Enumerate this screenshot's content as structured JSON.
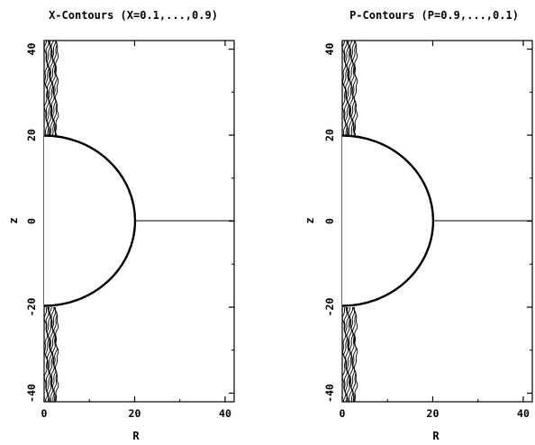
{
  "chart_data": [
    {
      "type": "contour",
      "title": "X-Contours (X=0.1,...,0.9)",
      "xlabel": "R",
      "ylabel": "z",
      "xlim": [
        0,
        42
      ],
      "ylim": [
        -42,
        42
      ],
      "xticks": [
        "0",
        "20",
        "40"
      ],
      "yticks": [
        "-40",
        "-20",
        "0",
        "20",
        "40"
      ],
      "boundary": {
        "shape": "semicircle",
        "radius": 20,
        "center": [
          0,
          0
        ]
      },
      "contour_levels": [
        0.1,
        0.2,
        0.3,
        0.4,
        0.5,
        0.6,
        0.7,
        0.8,
        0.9
      ],
      "contour_band_r": [
        0.4,
        2.8
      ]
    },
    {
      "type": "contour",
      "title": "P-Contours (P=0.9,...,0.1)",
      "xlabel": "R",
      "ylabel": "z",
      "xlim": [
        0,
        42
      ],
      "ylim": [
        -42,
        42
      ],
      "xticks": [
        "0",
        "20",
        "40"
      ],
      "yticks": [
        "-40",
        "-20",
        "0",
        "20",
        "40"
      ],
      "boundary": {
        "shape": "semicircle",
        "radius": 20,
        "center": [
          0,
          0
        ]
      },
      "contour_levels": [
        0.9,
        0.8,
        0.7,
        0.6,
        0.5,
        0.4,
        0.3,
        0.2,
        0.1
      ],
      "contour_band_r": [
        0.4,
        3.0
      ]
    }
  ]
}
